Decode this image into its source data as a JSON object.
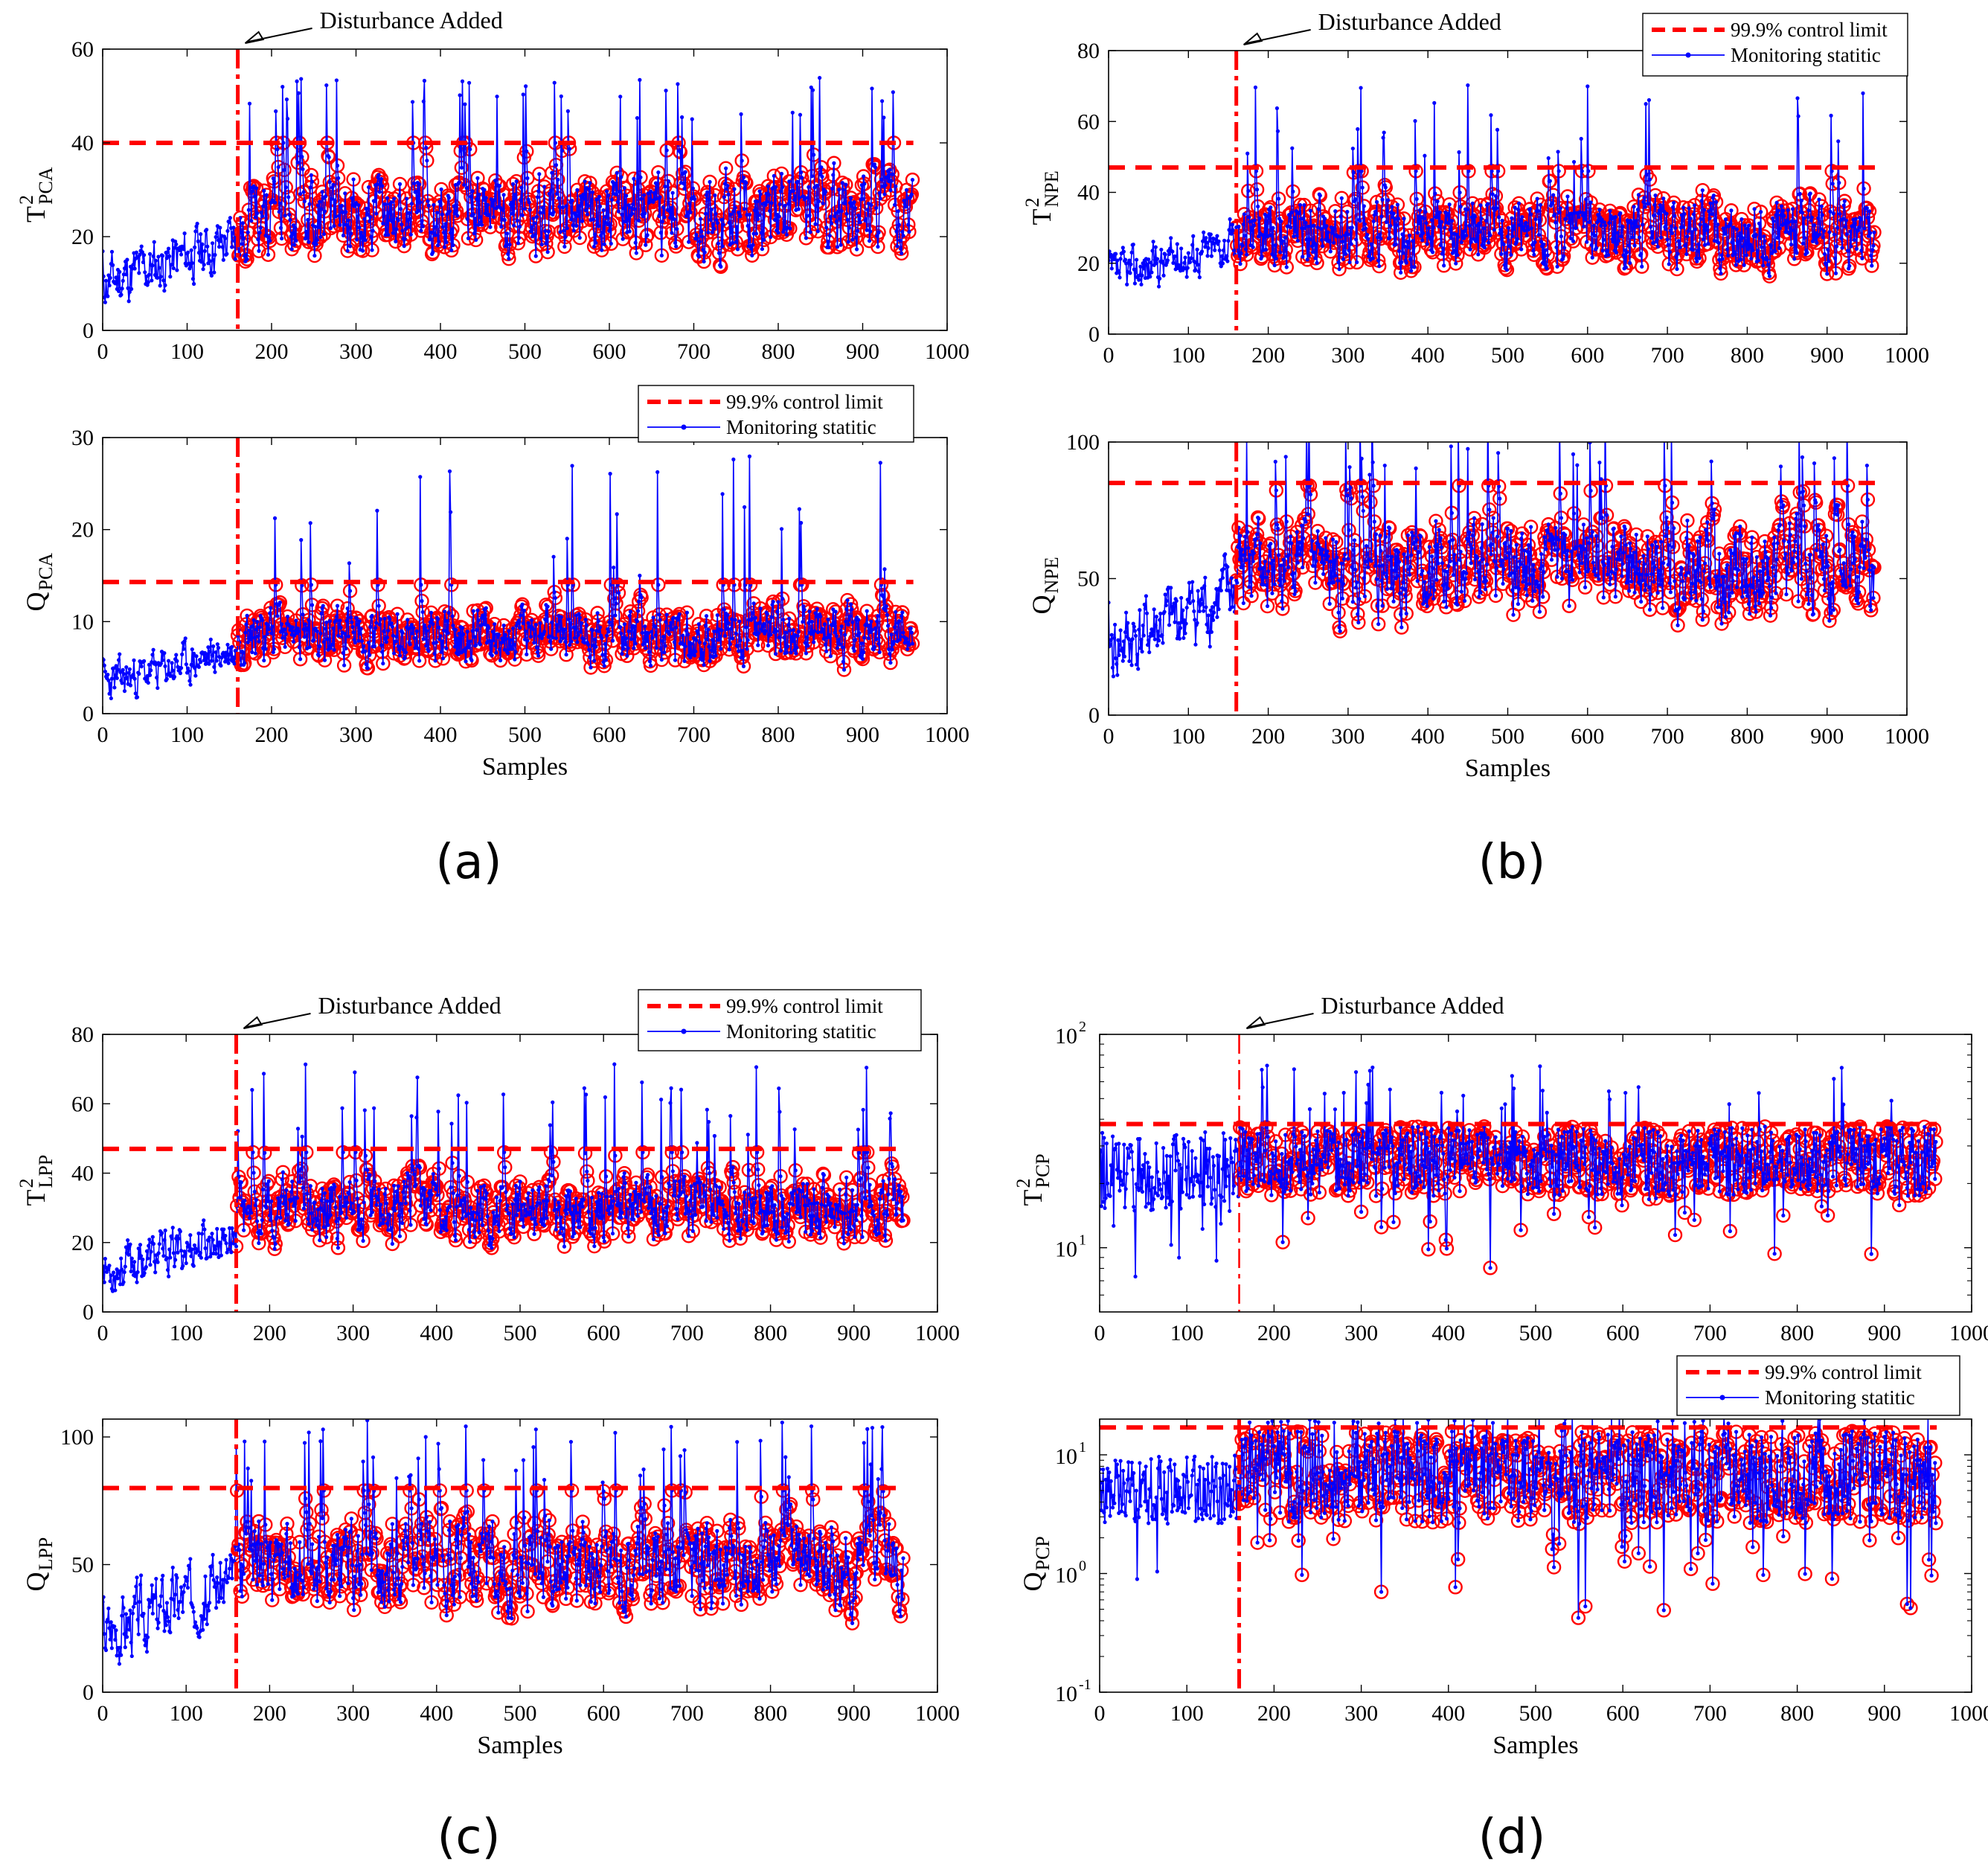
{
  "figure": {
    "panel_labels": [
      "(a)",
      "(b)",
      "(c)",
      "(d)"
    ],
    "colors": {
      "limit": "#ff0000",
      "statistic": "#0000ff",
      "circle": "#ff0000",
      "axis": "#000000"
    }
  },
  "chart_data": [
    {
      "id": "a-top",
      "panel": "(a)",
      "type": "line",
      "yscale": "linear",
      "ylabel_main": "T",
      "ylabel_sup": "2",
      "ylabel_sub": "PCA",
      "xlabel": "",
      "xlim": [
        0,
        1000
      ],
      "ylim": [
        0,
        60
      ],
      "xticks": [
        0,
        100,
        200,
        300,
        400,
        500,
        600,
        700,
        800,
        900,
        1000
      ],
      "xtick_labels": [
        "0",
        "100",
        "200",
        "300",
        "400",
        "500",
        "600",
        "700",
        "800",
        "900",
        "1000"
      ],
      "yticks": [
        0,
        20,
        40,
        60
      ],
      "ytick_labels": [
        "0",
        "20",
        "40",
        "60"
      ],
      "control_limit": 40,
      "disturbance_sample": 160,
      "n_samples": 960,
      "pre_range": [
        4,
        28
      ],
      "post_range": [
        6,
        40
      ],
      "spikes": [
        45,
        54
      ],
      "annotation": "Disturbance Added",
      "legend": null,
      "seed": 11
    },
    {
      "id": "a-bottom",
      "panel": "(a)",
      "type": "line",
      "yscale": "linear",
      "ylabel_main": "Q",
      "ylabel_sup": "",
      "ylabel_sub": "PCA",
      "xlabel": "Samples",
      "xlim": [
        0,
        1000
      ],
      "ylim": [
        0,
        30
      ],
      "xticks": [
        0,
        100,
        200,
        300,
        400,
        500,
        600,
        700,
        800,
        900,
        1000
      ],
      "xtick_labels": [
        "0",
        "100",
        "200",
        "300",
        "400",
        "500",
        "600",
        "700",
        "800",
        "900",
        "1000"
      ],
      "yticks": [
        0,
        10,
        20,
        30
      ],
      "ytick_labels": [
        "0",
        "10",
        "20",
        "30"
      ],
      "control_limit": 14.3,
      "disturbance_sample": 160,
      "n_samples": 960,
      "pre_range": [
        1,
        10
      ],
      "post_range": [
        2,
        14
      ],
      "spikes": [
        15,
        28
      ],
      "annotation": null,
      "legend": {
        "limit_label": "99.9% control limit",
        "stat_label": "Monitoring statitic"
      },
      "seed": 23
    },
    {
      "id": "b-top",
      "panel": "(b)",
      "type": "line",
      "yscale": "linear",
      "ylabel_main": "T",
      "ylabel_sup": "2",
      "ylabel_sub": "NPE",
      "xlabel": "",
      "xlim": [
        0,
        1000
      ],
      "ylim": [
        0,
        80
      ],
      "xticks": [
        0,
        100,
        200,
        300,
        400,
        500,
        600,
        700,
        800,
        900,
        1000
      ],
      "xtick_labels": [
        "0",
        "100",
        "200",
        "300",
        "400",
        "500",
        "600",
        "700",
        "800",
        "900",
        "1000"
      ],
      "yticks": [
        0,
        20,
        40,
        60,
        80
      ],
      "ytick_labels": [
        "0",
        "20",
        "40",
        "60",
        "80"
      ],
      "control_limit": 47,
      "disturbance_sample": 160,
      "n_samples": 960,
      "pre_range": [
        10,
        35
      ],
      "post_range": [
        7,
        46
      ],
      "spikes": [
        48,
        71
      ],
      "annotation": "Disturbance Added",
      "legend": {
        "limit_label": "99.9% control limit",
        "stat_label": "Monitoring statitic"
      },
      "seed": 37
    },
    {
      "id": "b-bottom",
      "panel": "(b)",
      "type": "line",
      "yscale": "linear",
      "ylabel_main": "Q",
      "ylabel_sup": "",
      "ylabel_sub": "NPE",
      "xlabel": "Samples",
      "xlim": [
        0,
        1000
      ],
      "ylim": [
        0,
        100
      ],
      "xticks": [
        0,
        100,
        200,
        300,
        400,
        500,
        600,
        700,
        800,
        900,
        1000
      ],
      "xtick_labels": [
        "0",
        "100",
        "200",
        "300",
        "400",
        "500",
        "600",
        "700",
        "800",
        "900",
        "1000"
      ],
      "yticks": [
        0,
        50,
        100
      ],
      "ytick_labels": [
        "0",
        "50",
        "100"
      ],
      "control_limit": 85,
      "disturbance_sample": 160,
      "n_samples": 960,
      "pre_range": [
        10,
        65
      ],
      "post_range": [
        15,
        84
      ],
      "spikes": [
        86,
        116
      ],
      "annotation": null,
      "legend": null,
      "seed": 41
    },
    {
      "id": "c-top",
      "panel": "(c)",
      "type": "line",
      "yscale": "linear",
      "ylabel_main": "T",
      "ylabel_sup": "2",
      "ylabel_sub": "LPP",
      "xlabel": "",
      "xlim": [
        0,
        1000
      ],
      "ylim": [
        0,
        80
      ],
      "xticks": [
        0,
        100,
        200,
        300,
        400,
        500,
        600,
        700,
        800,
        900,
        1000
      ],
      "xtick_labels": [
        "0",
        "100",
        "200",
        "300",
        "400",
        "500",
        "600",
        "700",
        "800",
        "900",
        "1000"
      ],
      "yticks": [
        0,
        20,
        40,
        60,
        80
      ],
      "ytick_labels": [
        "0",
        "20",
        "40",
        "60",
        "80"
      ],
      "control_limit": 47,
      "disturbance_sample": 160,
      "n_samples": 960,
      "pre_range": [
        5,
        32
      ],
      "post_range": [
        9,
        46
      ],
      "spikes": [
        48,
        72
      ],
      "annotation": "Disturbance Added",
      "legend": {
        "limit_label": "99.9% control limit",
        "stat_label": "Monitoring statitic"
      },
      "seed": 53
    },
    {
      "id": "c-bottom",
      "panel": "(c)",
      "type": "line",
      "yscale": "linear",
      "ylabel_main": "Q",
      "ylabel_sup": "",
      "ylabel_sub": "LPP",
      "xlabel": "Samples",
      "xlim": [
        0,
        1000
      ],
      "ylim": [
        0,
        107
      ],
      "xticks": [
        0,
        100,
        200,
        300,
        400,
        500,
        600,
        700,
        800,
        900,
        1000
      ],
      "xtick_labels": [
        "0",
        "100",
        "200",
        "300",
        "400",
        "500",
        "600",
        "700",
        "800",
        "900",
        "1000"
      ],
      "yticks": [
        0,
        50,
        100
      ],
      "ytick_labels": [
        "0",
        "50",
        "100"
      ],
      "control_limit": 80,
      "disturbance_sample": 160,
      "n_samples": 960,
      "pre_range": [
        10,
        65
      ],
      "post_range": [
        13,
        79
      ],
      "spikes": [
        82,
        107
      ],
      "annotation": null,
      "legend": null,
      "seed": 67
    },
    {
      "id": "d-top",
      "panel": "(d)",
      "type": "line",
      "yscale": "log",
      "ylabel_main": "T",
      "ylabel_sup": "2",
      "ylabel_sub": "PCP",
      "xlabel": "",
      "xlim": [
        0,
        1000
      ],
      "ylim": [
        5,
        100
      ],
      "xticks": [
        0,
        100,
        200,
        300,
        400,
        500,
        600,
        700,
        800,
        900,
        1000
      ],
      "xtick_labels": [
        "0",
        "100",
        "200",
        "300",
        "400",
        "500",
        "600",
        "700",
        "800",
        "900",
        "1000"
      ],
      "yticks": [
        10,
        100
      ],
      "ytick_labels": [
        {
          "base": "10",
          "exp": "1"
        },
        {
          "base": "10",
          "exp": "2"
        }
      ],
      "control_limit": 38,
      "disturbance_sample": 160,
      "n_samples": 960,
      "pre_range": [
        5,
        36
      ],
      "post_range": [
        7,
        37
      ],
      "spikes": [
        40,
        72
      ],
      "annotation": "Disturbance Added",
      "legend": null,
      "seed": 79
    },
    {
      "id": "d-bottom",
      "panel": "(d)",
      "type": "line",
      "yscale": "log",
      "ylabel_main": "Q",
      "ylabel_sup": "",
      "ylabel_sub": "PCP",
      "xlabel": "Samples",
      "xlim": [
        0,
        1000
      ],
      "ylim": [
        0.1,
        20
      ],
      "xticks": [
        0,
        100,
        200,
        300,
        400,
        500,
        600,
        700,
        800,
        900,
        1000
      ],
      "xtick_labels": [
        "0",
        "100",
        "200",
        "300",
        "400",
        "500",
        "600",
        "700",
        "800",
        "900",
        "1000"
      ],
      "yticks": [
        0.1,
        1,
        10
      ],
      "ytick_labels": [
        {
          "base": "10",
          "exp": "-1"
        },
        {
          "base": "10",
          "exp": "0"
        },
        {
          "base": "10",
          "exp": "1"
        }
      ],
      "control_limit": 17,
      "disturbance_sample": 160,
      "n_samples": 960,
      "pre_range": [
        0.5,
        10
      ],
      "post_range": [
        0.3,
        16
      ],
      "spikes": [
        18,
        22
      ],
      "annotation": null,
      "legend": {
        "limit_label": "99.9% control limit",
        "stat_label": "Monitoring statitic"
      },
      "seed": 97
    }
  ]
}
